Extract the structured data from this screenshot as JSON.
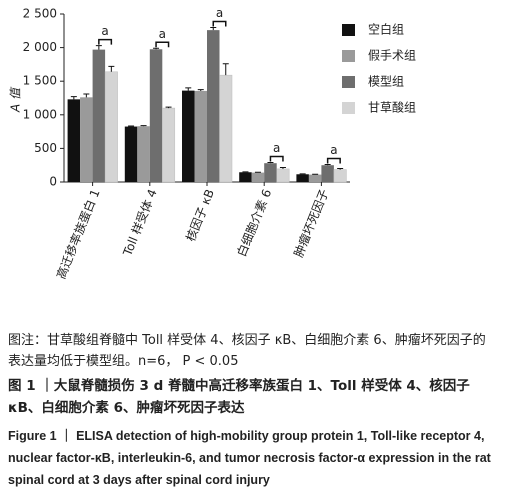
{
  "chart_data": {
    "type": "bar",
    "ylabel": "A 值",
    "categories": [
      "高迁移率族蛋白 1",
      "Toll 样受体 4",
      "核因子 κB",
      "白细胞介素 6",
      "肿瘤坏死因子"
    ],
    "series": [
      {
        "name": "空白组",
        "color": "#111111",
        "values": [
          1230,
          825,
          1360,
          145,
          115
        ],
        "errors": [
          40,
          8,
          40,
          5,
          5
        ]
      },
      {
        "name": "假手术组",
        "color": "#9a9a9a",
        "values": [
          1260,
          830,
          1355,
          140,
          110
        ],
        "errors": [
          50,
          8,
          20,
          5,
          5
        ]
      },
      {
        "name": "模型组",
        "color": "#6e6e6e",
        "values": [
          1970,
          1975,
          2260,
          280,
          250
        ],
        "errors": [
          60,
          15,
          40,
          10,
          10
        ]
      },
      {
        "name": "甘草酸组",
        "color": "#d4d4d4",
        "values": [
          1640,
          1100,
          1590,
          195,
          185
        ],
        "errors": [
          80,
          15,
          170,
          20,
          15
        ]
      }
    ],
    "annotations": [
      "a",
      "a",
      "a",
      "a",
      "a"
    ],
    "ylim": [
      0,
      2500
    ],
    "yticks": [
      0,
      500,
      {
        "value": 1000,
        "label": "1 000"
      },
      {
        "value": 1500,
        "label": "1 500"
      },
      {
        "value": 2000,
        "label": "2 000"
      },
      {
        "value": 2500,
        "label": "2 500"
      }
    ]
  },
  "caption": {
    "note": "图注：甘草酸组脊髓中 Toll 样受体 4、核因子 κB、白细胞介素 6、肿瘤坏死因子的表达量均低于模型组。n=6， P < 0.05",
    "title_cn": "图 1 ｜大鼠脊髓损伤 3 d 脊髓中高迁移率族蛋白 1、Toll 样受体 4、核因子 κB、白细胞介素 6、肿瘤坏死因子表达",
    "title_en": "Figure 1 ｜ ELISA detection of high-mobility group protein 1, Toll-like receptor 4, nuclear factor-κB, interleukin-6, and tumor necrosis factor-α expression in the rat spinal cord at 3 days after spinal cord injury"
  }
}
